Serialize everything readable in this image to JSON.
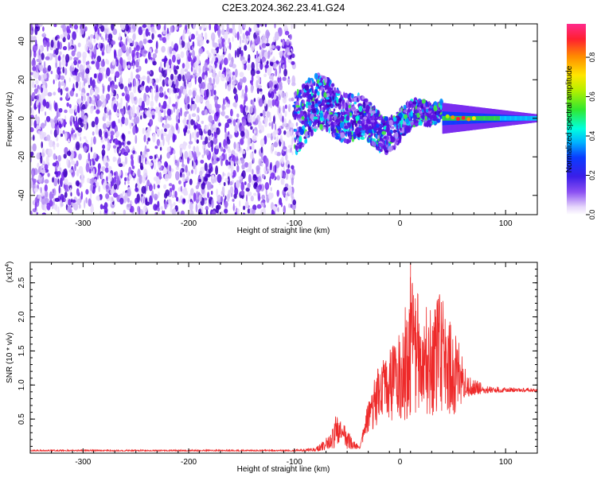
{
  "title": "C2E3.2024.362.23.41.G24",
  "colors": {
    "line": "#ee2a2a",
    "spec_low": "#e4d4fb",
    "spec_mid": "#7a2df0",
    "spec_deep": "#3f00c0"
  },
  "chart_data": [
    {
      "type": "heatmap",
      "name": "spectrogram",
      "xlabel": "Height of straight line (km)",
      "ylabel": "Frequency (Hz)",
      "xlim": [
        -350,
        130
      ],
      "ylim": [
        -50,
        49
      ],
      "xticks": [
        -300,
        -200,
        -100,
        0,
        100
      ],
      "xtick_labels": [
        "-300",
        "-200",
        "-100",
        "0",
        "100"
      ],
      "yticks": [
        -40,
        -20,
        0,
        20,
        40
      ],
      "ytick_labels": [
        "-40",
        "-20",
        "0",
        "20",
        "40"
      ],
      "colorbar": {
        "label": "Normalized spectral amplitude",
        "range": [
          0,
          0.97
        ],
        "ticks": [
          0.0,
          0.2,
          0.4,
          0.6,
          0.8
        ],
        "tick_labels": [
          "0.0",
          "0.2",
          "0.4",
          "0.6",
          "0.8"
        ]
      },
      "regions": [
        {
          "x_from": -350,
          "x_to": -100,
          "freq_from": -50,
          "freq_to": 49,
          "amplitude": 0.03,
          "description": "broadband noise"
        },
        {
          "x_from": -100,
          "x_to": 40,
          "center_freq": 0,
          "spread_hz": 22,
          "amplitude": 0.2
        },
        {
          "x_from": 40,
          "x_to": 130,
          "center_freq": 0,
          "spread_hz": 3,
          "amplitude": 0.6
        }
      ]
    },
    {
      "type": "line",
      "name": "snr",
      "xlabel": "Height of straight line (km)",
      "ylabel": "SNR (10 * v/v)",
      "yscale_label": "(x10",
      "yscale_exp": "4",
      "yscale_close": ")",
      "xlim": [
        -350,
        130
      ],
      "ylim": [
        0,
        2.8
      ],
      "xticks": [
        -300,
        -200,
        -100,
        0,
        100
      ],
      "xtick_labels": [
        "-300",
        "-200",
        "-100",
        "0",
        "100"
      ],
      "yticks": [
        0.5,
        1.0,
        1.5,
        2.0,
        2.5
      ],
      "ytick_labels": [
        "0.5",
        "1.0",
        "1.5",
        "2.0",
        "2.5"
      ],
      "envelope": {
        "x": [
          -350,
          -100,
          -80,
          -65,
          -60,
          -55,
          -45,
          -38,
          -30,
          -20,
          -10,
          0,
          10,
          20,
          30,
          38,
          45,
          55,
          60,
          70,
          80,
          100,
          130
        ],
        "low": [
          0.03,
          0.03,
          0.03,
          0.05,
          0.05,
          0.05,
          0.05,
          0.05,
          0.25,
          0.35,
          0.45,
          0.45,
          0.5,
          0.6,
          0.5,
          0.5,
          0.5,
          0.5,
          0.8,
          0.85,
          0.88,
          0.9,
          0.9
        ],
        "high": [
          0.05,
          0.05,
          0.08,
          0.3,
          0.6,
          0.5,
          0.2,
          0.1,
          0.8,
          1.3,
          1.55,
          1.8,
          2.7,
          2.2,
          2.1,
          2.5,
          2.0,
          1.8,
          1.3,
          1.1,
          1.0,
          0.97,
          0.95
        ]
      },
      "peak": {
        "x": 10,
        "y": 2.8
      }
    }
  ]
}
